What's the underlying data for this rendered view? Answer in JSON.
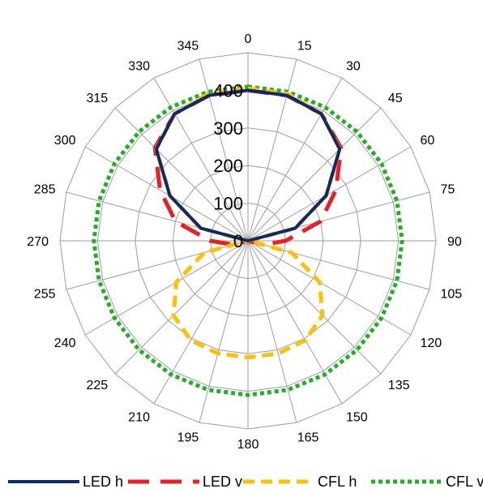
{
  "chart_data": {
    "type": "radar",
    "title": "",
    "angles": [
      0,
      15,
      30,
      45,
      60,
      75,
      90,
      105,
      120,
      135,
      150,
      165,
      180,
      195,
      210,
      225,
      240,
      255,
      270,
      285,
      300,
      315,
      330,
      345
    ],
    "radial_ticks": [
      0,
      100,
      200,
      300,
      400
    ],
    "rlim": [
      0,
      500
    ],
    "grid": true,
    "legend_position": "bottom",
    "colors": {
      "grid": "#9e9e9e",
      "text": "#000000"
    },
    "series": [
      {
        "name": "LED h",
        "color": "#0d2a6b",
        "dash": "solid",
        "values": [
          400,
          400,
          390,
          345,
          240,
          130,
          0,
          0,
          0,
          0,
          0,
          0,
          0,
          0,
          0,
          0,
          0,
          0,
          0,
          130,
          240,
          345,
          390,
          400
        ]
      },
      {
        "name": "LED v",
        "color": "#ee1c25",
        "dash": "long",
        "values": [
          400,
          400,
          390,
          350,
          270,
          200,
          100,
          40,
          0,
          0,
          0,
          0,
          0,
          0,
          0,
          0,
          0,
          40,
          100,
          200,
          270,
          350,
          390,
          400
        ]
      },
      {
        "name": "CFL h",
        "color": "#ffc000",
        "dash": "medium",
        "values": [
          405,
          405,
          390,
          345,
          240,
          130,
          0,
          120,
          220,
          280,
          305,
          310,
          310,
          310,
          305,
          280,
          220,
          120,
          0,
          130,
          240,
          345,
          390,
          405
        ]
      },
      {
        "name": "CFL v",
        "color": "#22b022",
        "dash": "dotted",
        "values": [
          410,
          410,
          410,
          410,
          410,
          410,
          410,
          410,
          410,
          410,
          410,
          410,
          410,
          410,
          410,
          410,
          410,
          410,
          410,
          410,
          410,
          410,
          410,
          410
        ]
      }
    ]
  }
}
